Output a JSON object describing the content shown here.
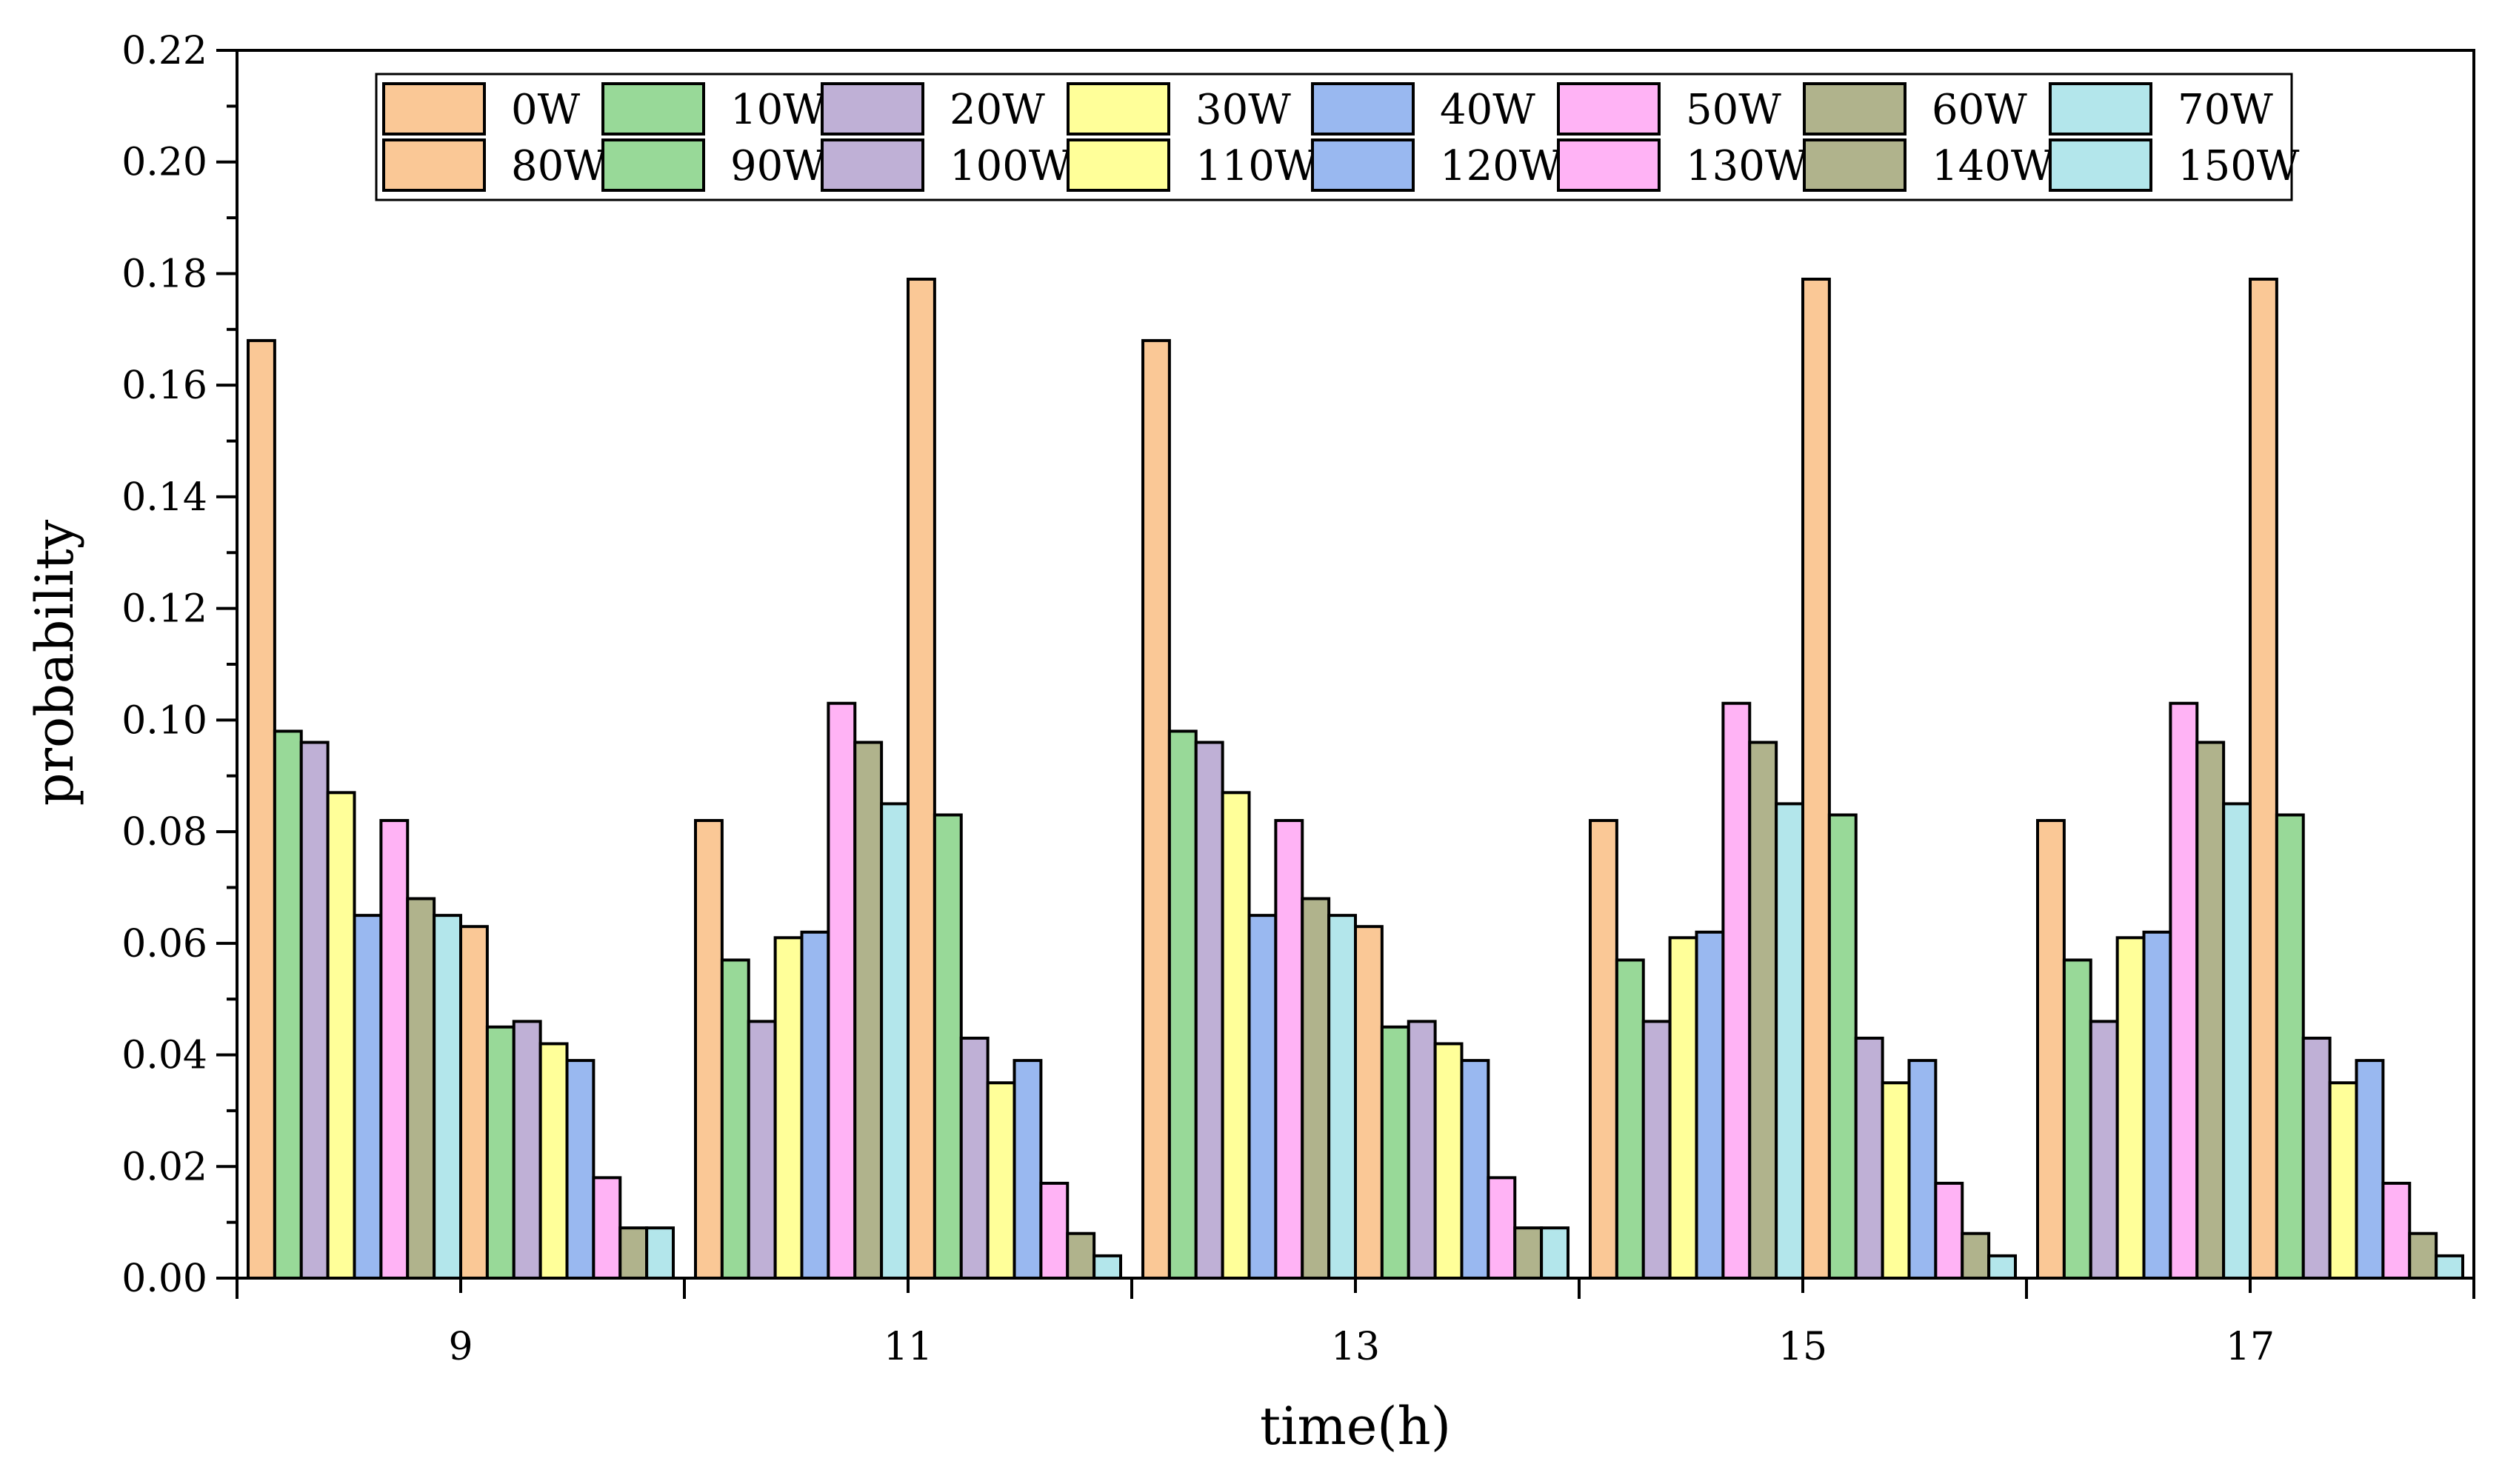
{
  "chart_data": {
    "type": "bar",
    "title": "",
    "xlabel": "time(h)",
    "ylabel": "probability",
    "ylim": [
      0,
      0.22
    ],
    "yticks": [
      "0.00",
      "0.02",
      "0.04",
      "0.06",
      "0.08",
      "0.10",
      "0.12",
      "0.14",
      "0.16",
      "0.18",
      "0.20",
      "0.22"
    ],
    "categories": [
      "9",
      "11",
      "13",
      "15",
      "17"
    ],
    "legend_position": "top",
    "series": [
      {
        "name": "0W",
        "color": "#FAC896",
        "values": [
          0.168,
          0.082,
          0.168,
          0.082,
          0.082
        ]
      },
      {
        "name": "10W",
        "color": "#98D998",
        "values": [
          0.098,
          0.057,
          0.098,
          0.057,
          0.057
        ]
      },
      {
        "name": "20W",
        "color": "#BFB0D6",
        "values": [
          0.096,
          0.046,
          0.096,
          0.046,
          0.046
        ]
      },
      {
        "name": "30W",
        "color": "#FFFF99",
        "values": [
          0.087,
          0.061,
          0.087,
          0.061,
          0.061
        ]
      },
      {
        "name": "40W",
        "color": "#99B8F0",
        "values": [
          0.065,
          0.062,
          0.065,
          0.062,
          0.062
        ]
      },
      {
        "name": "50W",
        "color": "#FFB3F5",
        "values": [
          0.082,
          0.103,
          0.082,
          0.103,
          0.103
        ]
      },
      {
        "name": "60W",
        "color": "#B0B38C",
        "values": [
          0.068,
          0.096,
          0.068,
          0.096,
          0.096
        ]
      },
      {
        "name": "70W",
        "color": "#B3E6EB",
        "values": [
          0.065,
          0.085,
          0.065,
          0.085,
          0.085
        ]
      },
      {
        "name": "80W",
        "color": "#FAC896",
        "values": [
          0.063,
          0.179,
          0.063,
          0.179,
          0.179
        ]
      },
      {
        "name": "90W",
        "color": "#98D998",
        "values": [
          0.045,
          0.083,
          0.045,
          0.083,
          0.083
        ]
      },
      {
        "name": "100W",
        "color": "#BFB0D6",
        "values": [
          0.046,
          0.043,
          0.046,
          0.043,
          0.043
        ]
      },
      {
        "name": "110W",
        "color": "#FFFF99",
        "values": [
          0.042,
          0.035,
          0.042,
          0.035,
          0.035
        ]
      },
      {
        "name": "120W",
        "color": "#99B8F0",
        "values": [
          0.039,
          0.039,
          0.039,
          0.039,
          0.039
        ]
      },
      {
        "name": "130W",
        "color": "#FFB3F5",
        "values": [
          0.018,
          0.017,
          0.018,
          0.017,
          0.017
        ]
      },
      {
        "name": "140W",
        "color": "#B0B38C",
        "values": [
          0.009,
          0.008,
          0.009,
          0.008,
          0.008
        ]
      },
      {
        "name": "150W",
        "color": "#B3E6EB",
        "values": [
          0.009,
          0.004,
          0.009,
          0.004,
          0.004
        ]
      }
    ]
  }
}
